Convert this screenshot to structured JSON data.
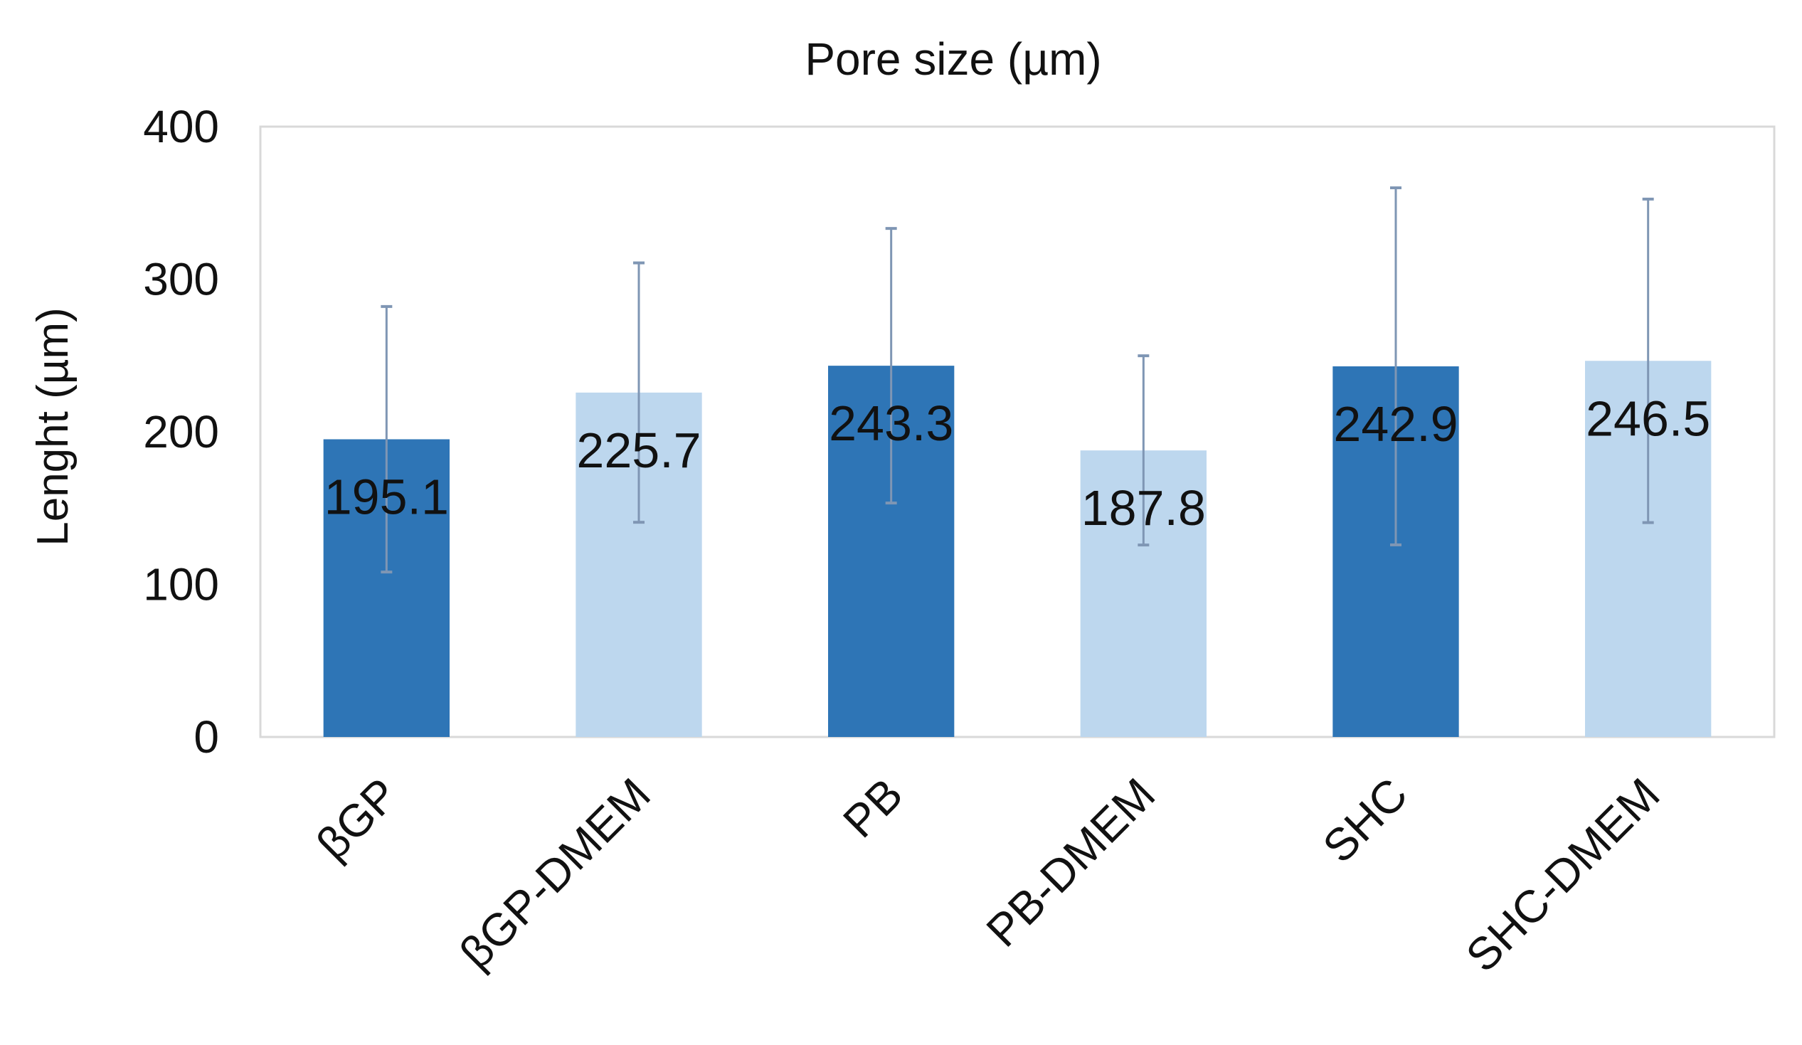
{
  "chart_data": {
    "type": "bar",
    "title": "Pore size (µm)",
    "xlabel": "",
    "ylabel": "Lenght  (µm)",
    "ylim": [
      0,
      400
    ],
    "yticks": [
      0,
      100,
      200,
      300,
      400
    ],
    "grid": false,
    "categories": [
      "βGP",
      "βGP-DMEM",
      "PB",
      "PB-DMEM",
      "SHC",
      "SHC-DMEM"
    ],
    "values": [
      195.1,
      225.7,
      243.3,
      187.8,
      242.9,
      246.5
    ],
    "data_labels": [
      "195.1",
      "225.7",
      "243.3",
      "187.8",
      "242.9",
      "246.5"
    ],
    "error": [
      87,
      85,
      90,
      62,
      117,
      106
    ],
    "bar_colors": [
      "#2e75b6",
      "#bdd7ee",
      "#2e75b6",
      "#bdd7ee",
      "#2e75b6",
      "#bdd7ee"
    ],
    "error_bar_color": "#7f96b4",
    "frame_color": "#d9d9d9"
  }
}
